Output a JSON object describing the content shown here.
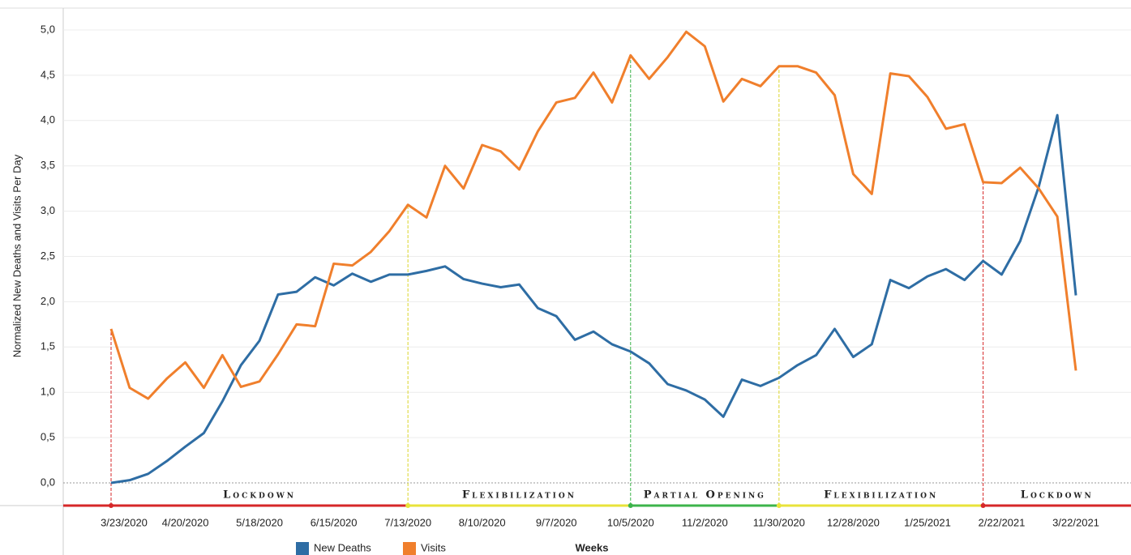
{
  "chart_data": {
    "type": "line",
    "y_label": "Normalized New Deaths and Visits Per Day",
    "x_label": "Weeks",
    "categories": [
      "3/23/2020",
      null,
      null,
      null,
      "4/20/2020",
      null,
      null,
      null,
      "5/18/2020",
      null,
      null,
      null,
      "6/15/2020",
      null,
      null,
      null,
      "7/13/2020",
      null,
      null,
      null,
      "8/10/2020",
      null,
      null,
      null,
      "9/7/2020",
      null,
      null,
      null,
      "10/5/2020",
      null,
      null,
      null,
      "11/2/2020",
      null,
      null,
      null,
      "11/30/2020",
      null,
      null,
      null,
      "12/28/2020",
      null,
      null,
      null,
      "1/25/2021",
      null,
      null,
      null,
      "2/22/2021",
      null,
      null,
      null,
      "3/22/2021"
    ],
    "series": [
      {
        "name": "New Deaths",
        "color": "#2e6da4",
        "values": [
          0.0,
          0.03,
          0.1,
          0.24,
          0.4,
          0.55,
          0.9,
          1.3,
          1.57,
          2.08,
          2.11,
          2.27,
          2.18,
          2.31,
          2.22,
          2.3,
          2.3,
          2.34,
          2.39,
          2.25,
          2.2,
          2.16,
          2.19,
          1.93,
          1.84,
          1.58,
          1.67,
          1.53,
          1.45,
          1.32,
          1.09,
          1.02,
          0.92,
          0.73,
          1.14,
          1.07,
          1.16,
          1.3,
          1.41,
          1.7,
          1.39,
          1.53,
          2.24,
          2.15,
          2.28,
          2.36,
          2.24,
          2.45,
          2.3,
          2.67,
          3.27,
          4.06,
          2.07
        ]
      },
      {
        "name": "Visits",
        "color": "#f07f2c",
        "values": [
          1.7,
          1.05,
          0.93,
          1.15,
          1.33,
          1.05,
          1.41,
          1.06,
          1.12,
          1.42,
          1.75,
          1.73,
          2.42,
          2.4,
          2.55,
          2.78,
          3.07,
          2.93,
          3.5,
          3.25,
          3.73,
          3.66,
          3.46,
          3.88,
          4.2,
          4.25,
          4.53,
          4.2,
          4.72,
          4.46,
          4.7,
          4.98,
          4.82,
          4.21,
          4.46,
          4.38,
          4.6,
          4.6,
          4.53,
          4.28,
          3.41,
          3.19,
          4.52,
          4.49,
          4.26,
          3.91,
          3.96,
          3.32,
          3.31,
          3.48,
          3.25,
          2.94,
          1.24
        ]
      }
    ],
    "ylim": [
      0,
      5.2
    ],
    "yticks": [
      {
        "value": 0,
        "label": "0,0"
      },
      {
        "value": 0.5,
        "label": "0,5"
      },
      {
        "value": 1,
        "label": "1,0"
      },
      {
        "value": 1.5,
        "label": "1,5"
      },
      {
        "value": 2,
        "label": "2,0"
      },
      {
        "value": 2.5,
        "label": "2,5"
      },
      {
        "value": 3,
        "label": "3,0"
      },
      {
        "value": 3.5,
        "label": "3,5"
      },
      {
        "value": 4,
        "label": "4,0"
      },
      {
        "value": 4.5,
        "label": "4,5"
      },
      {
        "value": 5,
        "label": "5,0"
      }
    ],
    "grid": true,
    "phases": [
      {
        "label": "Lockdown",
        "start": 0,
        "end": 16,
        "color": "#d62728"
      },
      {
        "label": "Flexibilization",
        "start": 16,
        "end": 28,
        "color": "#e8e33a"
      },
      {
        "label": "Partial Opening",
        "start": 28,
        "end": 36,
        "color": "#3cb44b"
      },
      {
        "label": "Flexibilization",
        "start": 36,
        "end": 47,
        "color": "#e8e33a"
      },
      {
        "label": "Lockdown",
        "start": 47,
        "end": 52,
        "color": "#d62728"
      }
    ]
  }
}
